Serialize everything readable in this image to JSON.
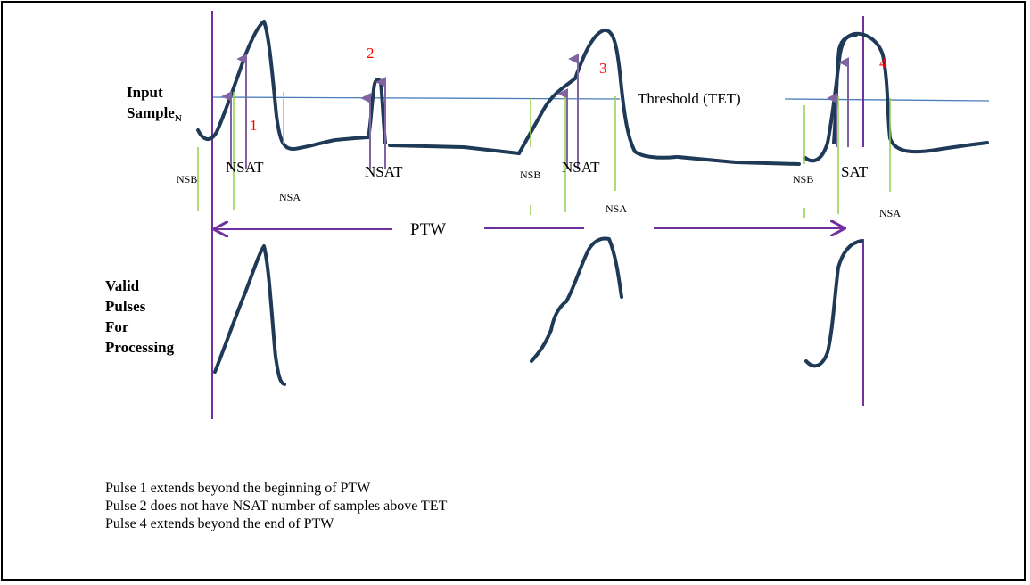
{
  "labels": {
    "input_line1": "Input",
    "input_line2": "Sample",
    "input_subscript": "N",
    "valid_lines": [
      "Valid",
      "Pulses",
      "For",
      "Processing"
    ],
    "threshold": "Threshold (TET)",
    "ptw": "PTW"
  },
  "pulse_numbers": [
    "1",
    "2",
    "3",
    "4"
  ],
  "markers": {
    "nsb": "NSB",
    "nsat": "NSAT",
    "nsat_short": "SAT",
    "nsa": "NSA"
  },
  "notes": [
    "Pulse 1 extends beyond the beginning of PTW",
    "Pulse 2 does not have NSAT number of samples above TET",
    "Pulse 4 extends beyond the end of PTW"
  ],
  "colors": {
    "waveform": "#1f3a57",
    "threshold": "#4a7ebb",
    "marker": "#8064a2",
    "sample_tick": "#92d050",
    "pulse_number": "#ff0000"
  }
}
